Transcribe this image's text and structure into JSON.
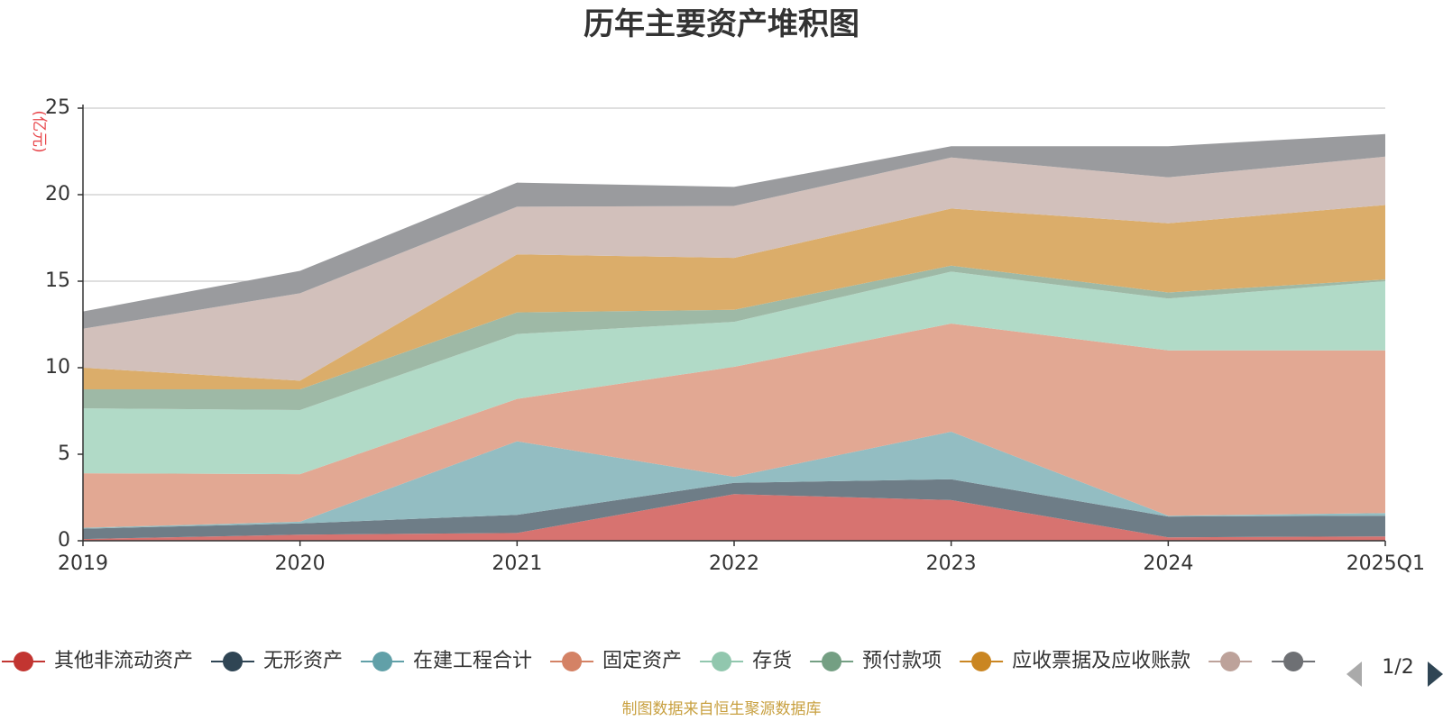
{
  "chart_data": {
    "type": "area",
    "stacked": true,
    "title": "历年主要资产堆积图",
    "unit_label": "(亿元)",
    "categories": [
      "2019",
      "2020",
      "2021",
      "2022",
      "2023",
      "2024",
      "2025Q1"
    ],
    "ylim": [
      0,
      25
    ],
    "yticks": [
      0,
      5,
      10,
      15,
      20,
      25
    ],
    "grid": true,
    "legend_position": "bottom",
    "series": [
      {
        "name": "其他非流动资产",
        "color": "#c23531",
        "fill": "#d77370",
        "values": [
          0.1,
          0.35,
          0.45,
          2.7,
          2.35,
          0.2,
          0.25
        ]
      },
      {
        "name": "无形资产",
        "color": "#2f4554",
        "fill": "#6e7d87",
        "values": [
          0.6,
          0.65,
          1.05,
          0.65,
          1.2,
          1.2,
          1.2
        ]
      },
      {
        "name": "在建工程合计",
        "color": "#61a0a8",
        "fill": "#93bdc2",
        "values": [
          0.05,
          0.1,
          4.25,
          0.35,
          2.75,
          0.05,
          0.15
        ]
      },
      {
        "name": "固定资产",
        "color": "#d48265",
        "fill": "#e2a893",
        "values": [
          3.15,
          2.75,
          2.45,
          6.35,
          6.25,
          9.55,
          9.4
        ]
      },
      {
        "name": "存货",
        "color": "#91c7ae",
        "fill": "#b1dac7",
        "values": [
          3.75,
          3.7,
          3.75,
          2.6,
          3.0,
          3.0,
          4.0
        ]
      },
      {
        "name": "预付款项",
        "color": "#749f83",
        "fill": "#9eb9a6",
        "values": [
          1.1,
          1.2,
          1.25,
          0.7,
          0.35,
          0.35,
          0.1
        ]
      },
      {
        "name": "应收票据及应收账款",
        "color": "#ca8622",
        "fill": "#dbad6a",
        "values": [
          1.25,
          0.5,
          3.35,
          3.0,
          3.3,
          4.0,
          4.3
        ]
      },
      {
        "name": "",
        "color": "#bda29a",
        "fill": "#d2c0bb",
        "values": [
          2.25,
          5.05,
          2.75,
          3.0,
          2.95,
          2.65,
          2.8
        ]
      },
      {
        "name": "",
        "color": "#6e7074",
        "fill": "#9a9b9e",
        "values": [
          1.0,
          1.3,
          1.4,
          1.1,
          0.65,
          1.8,
          1.3
        ]
      }
    ]
  },
  "legend": {
    "page_indicator": "1/2",
    "prev_icon": "triangle-left-icon",
    "next_icon": "triangle-right-icon"
  },
  "footer": {
    "text": "制图数据来自恒生聚源数据库",
    "color": "#c8a040"
  }
}
